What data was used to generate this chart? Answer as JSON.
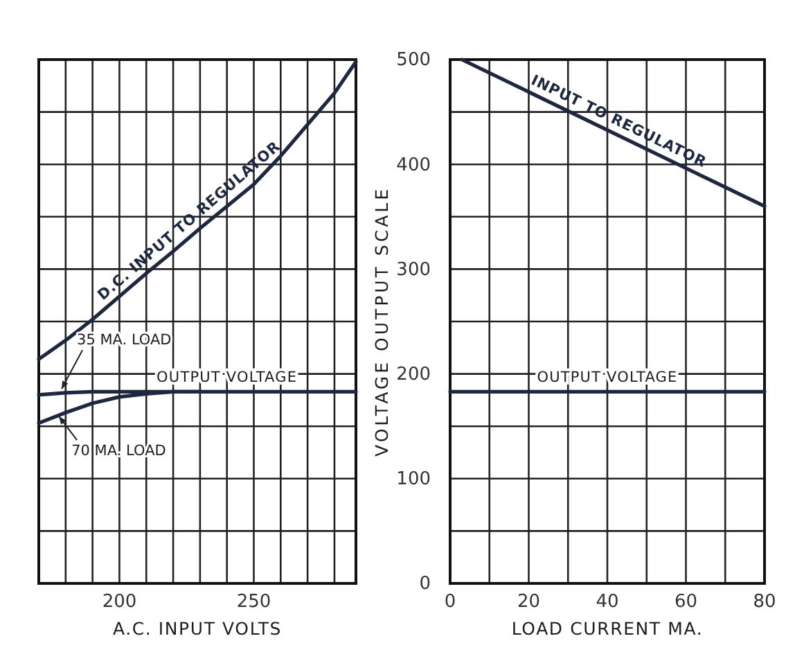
{
  "chart_data": [
    {
      "type": "line",
      "xlabel": "A.C. INPUT VOLTS",
      "xlim": [
        170,
        288
      ],
      "ylim": [
        0,
        500
      ],
      "xticks": [
        {
          "value": 180,
          "label": null
        },
        {
          "value": 190,
          "label": null
        },
        200,
        {
          "value": 210,
          "label": null
        },
        {
          "value": 220,
          "label": null
        },
        {
          "value": 230,
          "label": null
        },
        {
          "value": 240,
          "label": null
        },
        250,
        {
          "value": 260,
          "label": null
        },
        {
          "value": 270,
          "label": null
        },
        {
          "value": 280,
          "label": null
        }
      ],
      "yticks": [
        {
          "value": 50,
          "label": null
        },
        {
          "value": 100,
          "label": null
        },
        {
          "value": 150,
          "label": null
        },
        {
          "value": 200,
          "label": null
        },
        {
          "value": 250,
          "label": null
        },
        {
          "value": 300,
          "label": null
        },
        {
          "value": 350,
          "label": null
        },
        {
          "value": 400,
          "label": null
        },
        {
          "value": 450,
          "label": null
        }
      ],
      "tick_labels": "x",
      "grid": true,
      "series": [
        {
          "name": "D.C. INPUT TO REGULATOR",
          "color": "#1c2740",
          "x": [
            170,
            180,
            190,
            200,
            210,
            220,
            230,
            240,
            250,
            260,
            270,
            280,
            288
          ],
          "values": [
            214,
            232,
            252,
            274,
            296,
            317,
            339,
            360,
            381,
            408,
            438,
            468,
            498
          ]
        },
        {
          "color": "#1c2740",
          "x": [
            170,
            180,
            190,
            200,
            220,
            250,
            288
          ],
          "values": [
            180,
            182,
            183,
            183,
            183,
            183,
            183
          ]
        },
        {
          "color": "#1c2740",
          "x": [
            170,
            180,
            190,
            200,
            210,
            220,
            230
          ],
          "values": [
            153,
            163,
            172,
            178,
            181,
            183,
            183
          ]
        }
      ],
      "annotations": [
        {
          "text": "OUTPUT VOLTAGE",
          "x": 240,
          "y": 183
        },
        {
          "text": "35 MA. LOAD",
          "x": 178,
          "y": 183
        },
        {
          "text": "70 MA. LOAD",
          "x": 177,
          "y": 162
        }
      ]
    },
    {
      "type": "line",
      "xlabel": "LOAD CURRENT MA.",
      "ylabel": "VOLTAGE OUTPUT SCALE",
      "xlim": [
        0,
        80
      ],
      "ylim": [
        0,
        500
      ],
      "xticks": [
        0,
        {
          "value": 10,
          "label": null
        },
        20,
        {
          "value": 30,
          "label": null
        },
        40,
        {
          "value": 50,
          "label": null
        },
        60,
        {
          "value": 70,
          "label": null
        },
        80
      ],
      "yticks": [
        0,
        {
          "value": 50,
          "label": null
        },
        100,
        {
          "value": 150,
          "label": null
        },
        200,
        {
          "value": 250,
          "label": null
        },
        300,
        {
          "value": 350,
          "label": null
        },
        400,
        {
          "value": 450,
          "label": null
        },
        500
      ],
      "grid": true,
      "series": [
        {
          "name": "INPUT TO REGULATOR",
          "color": "#1c2740",
          "x": [
            3,
            80
          ],
          "values": [
            500,
            360
          ]
        },
        {
          "color": "#1c2740",
          "x": [
            0,
            80
          ],
          "values": [
            183,
            183
          ]
        }
      ],
      "annotations": [
        {
          "text": "OUTPUT VOLTAGE",
          "x": 40,
          "y": 183
        }
      ]
    }
  ]
}
